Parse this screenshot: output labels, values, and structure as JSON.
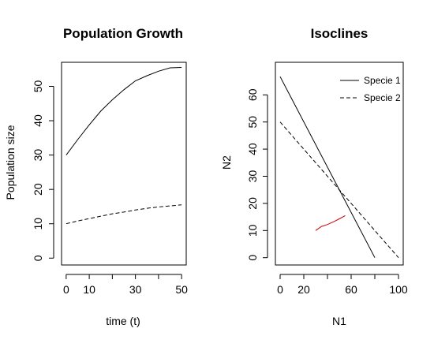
{
  "chart_data": [
    {
      "type": "line",
      "title": "Population Growth",
      "xlabel": "time (t)",
      "ylabel": "Population size",
      "xlim": [
        -2,
        52
      ],
      "ylim": [
        -2,
        57
      ],
      "xticks": [
        0,
        10,
        30,
        50
      ],
      "yticks": [
        0,
        10,
        20,
        30,
        40,
        50
      ],
      "series": [
        {
          "style": "solid",
          "color": "#000000",
          "x": [
            0,
            5,
            10,
            15,
            20,
            25,
            30,
            35,
            40,
            45,
            50
          ],
          "y": [
            30,
            34.5,
            38.8,
            42.8,
            46.1,
            49,
            51.6,
            53.1,
            54.4,
            55.4,
            55.5
          ]
        },
        {
          "style": "dashed",
          "color": "#000000",
          "x": [
            0,
            5,
            10,
            15,
            20,
            25,
            30,
            35,
            40,
            45,
            50
          ],
          "y": [
            10,
            10.8,
            11.5,
            12.2,
            12.9,
            13.4,
            14,
            14.5,
            14.9,
            15.2,
            15.5
          ]
        }
      ]
    },
    {
      "type": "line",
      "title": "Isoclines",
      "xlabel": "N1",
      "ylabel": "N2",
      "xlim": [
        -4,
        104
      ],
      "ylim": [
        -2.7,
        72
      ],
      "xticks": [
        0,
        20,
        60,
        100
      ],
      "yticks": [
        0,
        10,
        20,
        30,
        40,
        50,
        60
      ],
      "legend": {
        "position": "top-right",
        "entries": [
          "Specie 1",
          "Specie 2"
        ]
      },
      "series": [
        {
          "name": "Specie 1",
          "style": "solid",
          "color": "#000000",
          "x": [
            0,
            80
          ],
          "y": [
            66.7,
            0
          ]
        },
        {
          "name": "Specie 2",
          "style": "dashed",
          "color": "#000000",
          "x": [
            0,
            100
          ],
          "y": [
            50,
            0
          ]
        },
        {
          "style": "solid",
          "color": "#cc0000",
          "x": [
            30,
            35,
            40,
            45,
            50,
            55
          ],
          "y": [
            10,
            11.5,
            12.2,
            13.2,
            14.3,
            15.5
          ]
        }
      ]
    }
  ]
}
